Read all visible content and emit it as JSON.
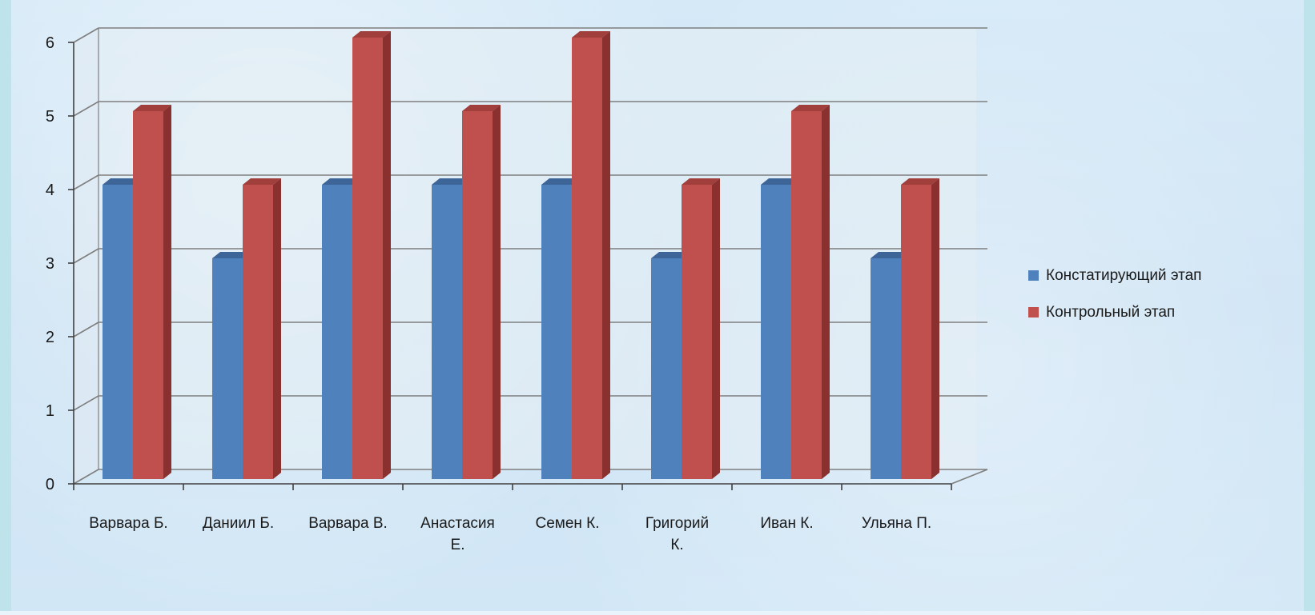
{
  "chart_data": {
    "type": "bar",
    "categories": [
      [
        "Варвара Б."
      ],
      [
        "Даниил Б."
      ],
      [
        "Варвара В."
      ],
      [
        "Анастасия",
        "Е."
      ],
      [
        "Семен К."
      ],
      [
        "Григорий",
        "К."
      ],
      [
        "Иван К."
      ],
      [
        "Ульяна П."
      ]
    ],
    "series": [
      {
        "name": "Констатирующий этап",
        "values": [
          4,
          3,
          4,
          4,
          4,
          3,
          4,
          3
        ]
      },
      {
        "name": "Контрольный этап",
        "values": [
          5,
          4,
          6,
          5,
          6,
          4,
          5,
          4
        ]
      }
    ],
    "ylim": [
      0,
      6
    ],
    "yticks": [
      0,
      1,
      2,
      3,
      4,
      5,
      6
    ],
    "grid": true,
    "legend": "right",
    "colors": {
      "series0": {
        "front": "#4f81bd",
        "top": "#3d6597",
        "side": "#375a86"
      },
      "series1": {
        "front": "#c0504d",
        "top": "#a13f3c",
        "side": "#8a302e"
      },
      "grid": "#7f7f7f",
      "wall": "#dce8f0"
    }
  }
}
